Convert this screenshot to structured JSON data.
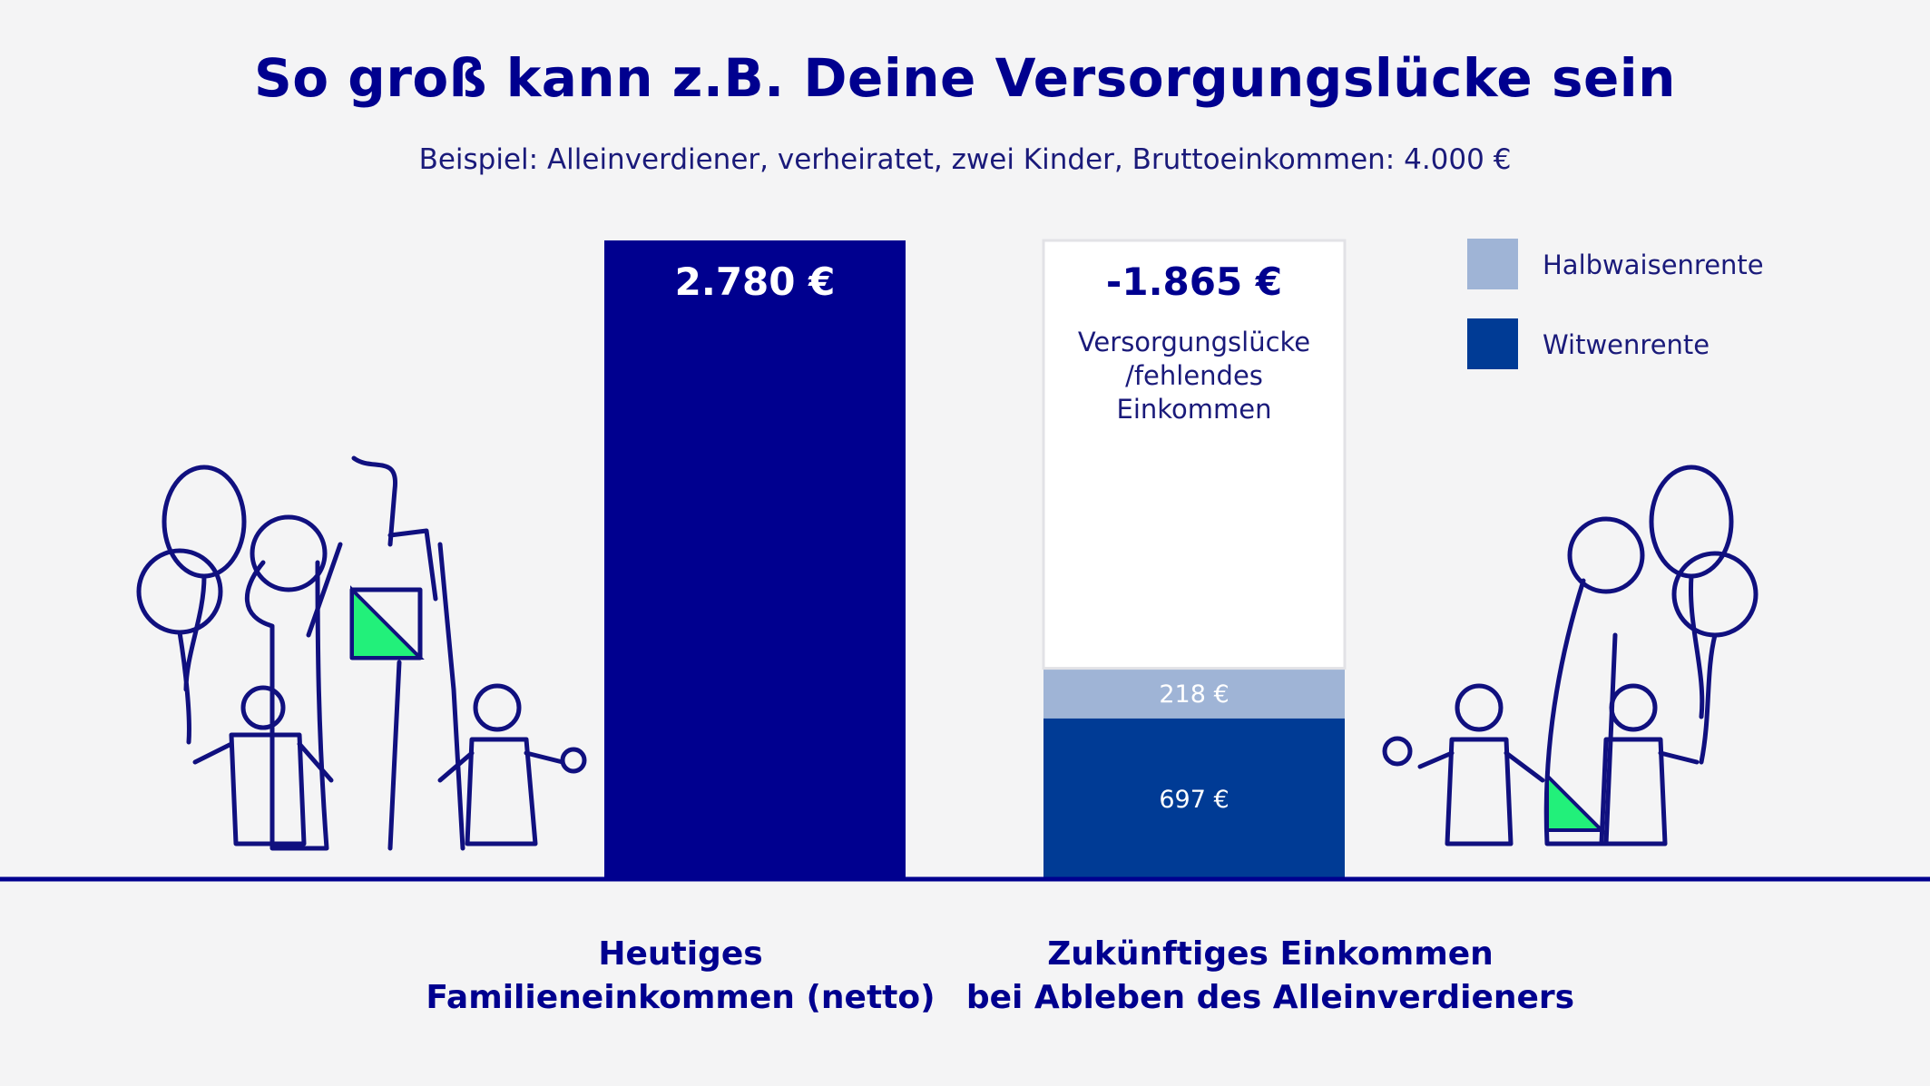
{
  "title": "So groß kann z.B. Deine Versorgungslücke sein",
  "subtitle": "Beispiel: Alleinverdiener, verheiratet, zwei Kinder, Bruttoeinkommen: 4.000 €",
  "colors": {
    "navy": "#00008f",
    "widow": "#003b95",
    "orphan": "#9fb4d6",
    "gap_fill": "#ffffff",
    "accent_green": "#22f07a"
  },
  "chart_data": {
    "type": "bar",
    "stacked": true,
    "ylim": [
      0,
      2780
    ],
    "categories": [
      "Heutiges Familieneinkommen (netto)",
      "Zukünftiges Einkommen bei Ableben des Alleinverdieners"
    ],
    "category_labels": [
      [
        "Heutiges",
        "Familieneinkommen (netto)"
      ],
      [
        "Zukünftiges Einkommen",
        "bei Ableben des Alleinverdieners"
      ]
    ],
    "bars": [
      {
        "total_label": "2.780 €",
        "segments": [
          {
            "name": "",
            "value": 2780,
            "label": "",
            "color": "#00008f"
          }
        ]
      },
      {
        "total_label": "-1.865 €",
        "note": [
          "Versorgungslücke",
          "/fehlendes",
          "Einkommen"
        ],
        "segments": [
          {
            "name": "Witwenrente",
            "value": 697,
            "label": "697 €",
            "color": "#003b95"
          },
          {
            "name": "Halbwaisenrente",
            "value": 218,
            "label": "218 €",
            "color": "#9fb4d6"
          },
          {
            "name": "Versorgungslücke",
            "value": 1865,
            "label": "",
            "color": "#ffffff"
          }
        ]
      }
    ],
    "legend": {
      "position": "top-right",
      "items": [
        {
          "name": "Halbwaisenrente",
          "color": "#9fb4d6"
        },
        {
          "name": "Witwenrente",
          "color": "#003b95"
        }
      ]
    }
  }
}
